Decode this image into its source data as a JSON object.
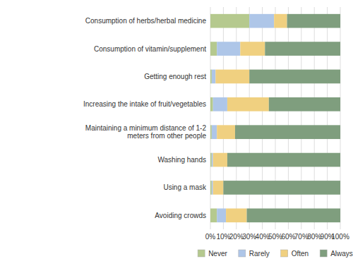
{
  "chart_data": {
    "type": "bar",
    "orientation": "horizontal",
    "stacked": true,
    "categories": [
      "Consumption of herbs/herbal medicine",
      "Consumption of vitamin/supplement",
      "Getting enough rest",
      "Increasing the intake of fruit/vegetables",
      "Maintaining a minimum distance of 1-2\nmeters from other people",
      "Washing hands",
      "Using a mask",
      "Avoiding crowds"
    ],
    "series": [
      {
        "name": "Never",
        "color": "#b5c98e",
        "values": [
          30,
          5,
          1,
          2,
          1,
          1,
          1,
          5
        ]
      },
      {
        "name": "Rarely",
        "color": "#aec6e8",
        "values": [
          19,
          18,
          3,
          11,
          4,
          1,
          1,
          7
        ]
      },
      {
        "name": "Often",
        "color": "#f0d080",
        "values": [
          10,
          19,
          26,
          32,
          14,
          11,
          8,
          16
        ]
      },
      {
        "name": "Always",
        "color": "#7f9e7e",
        "values": [
          41,
          58,
          70,
          55,
          81,
          87,
          90,
          72
        ]
      }
    ],
    "xlim": [
      0,
      100
    ],
    "xticks": [
      {
        "value": 0,
        "label": "0%"
      },
      {
        "value": 10,
        "label": "10%"
      },
      {
        "value": 20,
        "label": "20%"
      },
      {
        "value": 30,
        "label": "30%"
      },
      {
        "value": 40,
        "label": "40%"
      },
      {
        "value": 50,
        "label": "50%"
      },
      {
        "value": 60,
        "label": "60%"
      },
      {
        "value": 70,
        "label": "70%"
      },
      {
        "value": 80,
        "label": "80%"
      },
      {
        "value": 90,
        "label": "90%"
      },
      {
        "value": 100,
        "label": "100%"
      }
    ],
    "grid": true,
    "legend": "bottom"
  }
}
